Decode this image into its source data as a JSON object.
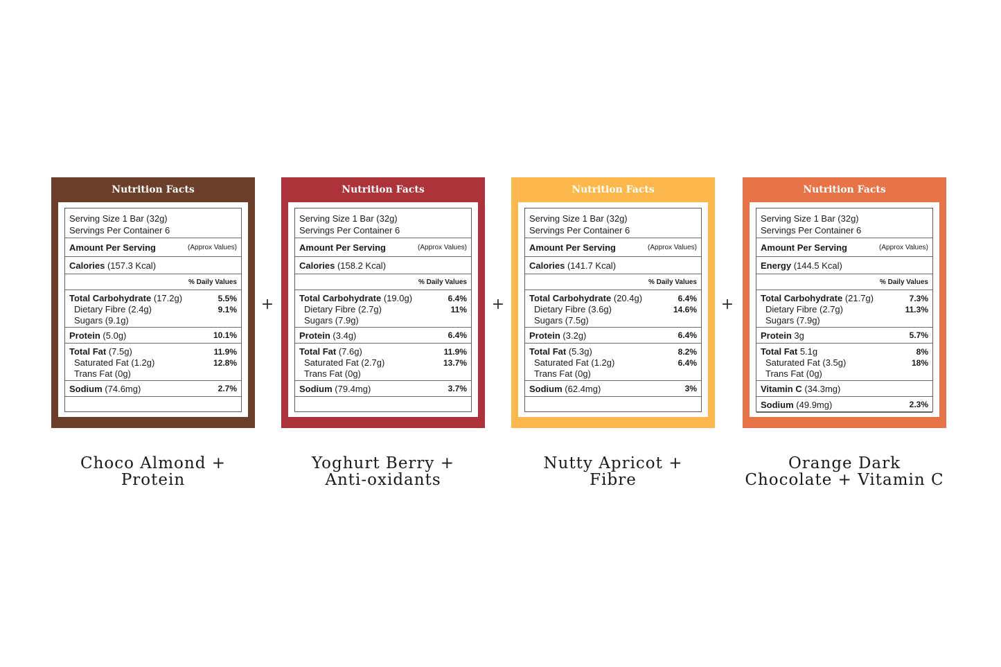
{
  "colors": {
    "choco": "#6b3f2a",
    "berry": "#ab3339",
    "apricot": "#fdb84d",
    "orange": "#e67447"
  },
  "plus_sign": "+",
  "cards": [
    {
      "title": "Nutrition Facts",
      "serving_size": "Serving Size 1 Bar (32g)",
      "servings_per": "Servings Per Container 6",
      "amount_label": "Amount Per Serving",
      "approx": "(Approx Values)",
      "calories_label": "Calories",
      "calories_value": "(157.3 Kcal)",
      "dv_header": "% Daily Values",
      "carb_label": "Total Carbohydrate",
      "carb_value": "(17.2g)",
      "carb_pct": "5.5%",
      "fibre_label": "Dietary Fibre (2.4g)",
      "fibre_pct": "9.1%",
      "sugars_label": "Sugars (9.1g)",
      "protein_label": "Protein",
      "protein_value": "(5.0g)",
      "protein_pct": "10.1%",
      "fat_label": "Total Fat",
      "fat_value": "(7.5g)",
      "fat_pct": "11.9%",
      "satfat_label": "Saturated Fat (1.2g)",
      "satfat_pct": "12.8%",
      "trans_label": "Trans Fat (0g)",
      "sodium_label": "Sodium",
      "sodium_value": "(74.6mg)",
      "sodium_pct": "2.7%",
      "caption_line1": "Choco Almond +",
      "caption_line2": "Protein"
    },
    {
      "title": "Nutrition Facts",
      "serving_size": "Serving Size 1 Bar (32g)",
      "servings_per": "Servings Per Container 6",
      "amount_label": "Amount Per Serving",
      "approx": "(Approx Values)",
      "calories_label": "Calories",
      "calories_value": "(158.2 Kcal)",
      "dv_header": "% Daily Values",
      "carb_label": "Total Carbohydrate",
      "carb_value": "(19.0g)",
      "carb_pct": "6.4%",
      "fibre_label": "Dietary Fibre (2.7g)",
      "fibre_pct": "11%",
      "sugars_label": "Sugars (7.9g)",
      "protein_label": "Protein",
      "protein_value": "(3.4g)",
      "protein_pct": "6.4%",
      "fat_label": "Total Fat",
      "fat_value": "(7.6g)",
      "fat_pct": "11.9%",
      "satfat_label": "Saturated Fat (2.7g)",
      "satfat_pct": "13.7%",
      "trans_label": "Trans Fat (0g)",
      "sodium_label": "Sodium",
      "sodium_value": "(79.4mg)",
      "sodium_pct": "3.7%",
      "caption_line1": "Yoghurt Berry +",
      "caption_line2": "Anti-oxidants"
    },
    {
      "title": "Nutrition Facts",
      "serving_size": "Serving Size 1 Bar (32g)",
      "servings_per": "Servings Per Container 6",
      "amount_label": "Amount Per Serving",
      "approx": "(Approx Values)",
      "calories_label": "Calories",
      "calories_value": "(141.7 Kcal)",
      "dv_header": "% Daily Values",
      "carb_label": "Total Carbohydrate",
      "carb_value": "(20.4g)",
      "carb_pct": "6.4%",
      "fibre_label": "Dietary Fibre (3.6g)",
      "fibre_pct": "14.6%",
      "sugars_label": "Sugars (7.5g)",
      "protein_label": "Protein",
      "protein_value": "(3.2g)",
      "protein_pct": "6.4%",
      "fat_label": "Total Fat",
      "fat_value": "(5.3g)",
      "fat_pct": "8.2%",
      "satfat_label": "Saturated Fat (1.2g)",
      "satfat_pct": "6.4%",
      "trans_label": "Trans Fat (0g)",
      "sodium_label": "Sodium",
      "sodium_value": "(62.4mg)",
      "sodium_pct": "3%",
      "caption_line1": "Nutty Apricot +",
      "caption_line2": "Fibre"
    },
    {
      "title": "Nutrition Facts",
      "serving_size": "Serving Size 1 Bar (32g)",
      "servings_per": "Servings Per Container 6",
      "amount_label": "Amount Per Serving",
      "approx": "(Approx Values)",
      "energy_label": "Energy",
      "energy_value": "(144.5 Kcal)",
      "dv_header": "% Daily Values",
      "carb_label": "Total Carbohydrate",
      "carb_value": "(21.7g)",
      "carb_pct": "7.3%",
      "fibre_label": "Dietary Fibre (2.7g)",
      "fibre_pct": "11.3%",
      "sugars_label": "Sugars (7.9g)",
      "protein_label": "Protein",
      "protein_value": "3g",
      "protein_pct": "5.7%",
      "fat_label": "Total Fat",
      "fat_value": "5.1g",
      "fat_pct": "8%",
      "satfat_label": "Saturated Fat (3.5g)",
      "satfat_pct": "18%",
      "trans_label": "Trans Fat (0g)",
      "vitc_label": "Vitamin C",
      "vitc_value": "(34.3mg)",
      "sodium_label": "Sodium",
      "sodium_value": "(49.9mg)",
      "sodium_pct": "2.3%",
      "caption_line1": "Orange Dark",
      "caption_line2": "Chocolate + Vitamin C"
    }
  ]
}
